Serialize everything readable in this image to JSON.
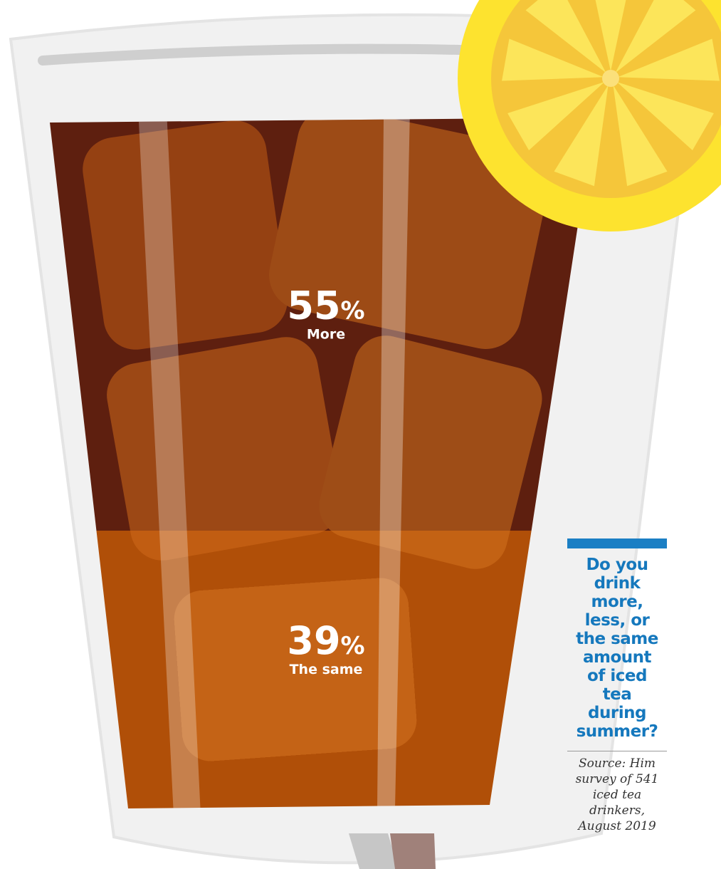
{
  "chart_data": {
    "type": "bar",
    "categories": [
      "More",
      "The same"
    ],
    "values": [
      55,
      39
    ],
    "unit": "%",
    "title": "Do you drink more, less, or the same amount of iced tea during summer?",
    "source": "Source: Him survey of 541 iced tea drinkers, August 2019",
    "colors": {
      "more": "#5e1f0f",
      "same": "#b04f08",
      "base": "#a9aacb",
      "lemon": "#fde32f",
      "accent": "#1b7fc4"
    }
  }
}
